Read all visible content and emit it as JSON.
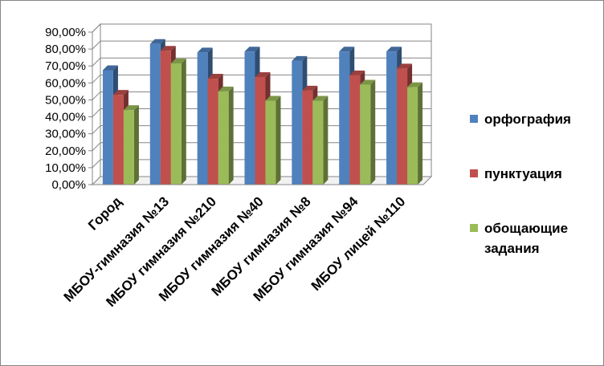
{
  "chart_data": {
    "type": "bar",
    "categories": [
      "Город",
      "МБОУ-гимназия №13",
      "МБОУ гимназия №210",
      "МБОУ гимназия №40",
      "МБОУ гимназия №8",
      "МБОУ гимназия №94",
      "МБОУ лицей №110"
    ],
    "series": [
      {
        "name": "орфография",
        "values": [
          67.5,
          83,
          78,
          78.5,
          73,
          78.5,
          78.5
        ],
        "color": "#4F81BD"
      },
      {
        "name": "пунктуация",
        "values": [
          53,
          79,
          62.5,
          63.5,
          55.5,
          64.5,
          68.5
        ],
        "color": "#C0504D"
      },
      {
        "name": "обощающие задания",
        "values": [
          44,
          71.5,
          55,
          49.5,
          49.5,
          59,
          57.5
        ],
        "color": "#9BBB59"
      }
    ],
    "y_ticks": [
      "0,00%",
      "10,00%",
      "20,00%",
      "30,00%",
      "40,00%",
      "50,00%",
      "60,00%",
      "70,00%",
      "80,00%",
      "90,00%"
    ],
    "ylim": [
      0,
      90
    ],
    "grid": true,
    "legend_position": "right",
    "style": "3d-clustered-column"
  }
}
